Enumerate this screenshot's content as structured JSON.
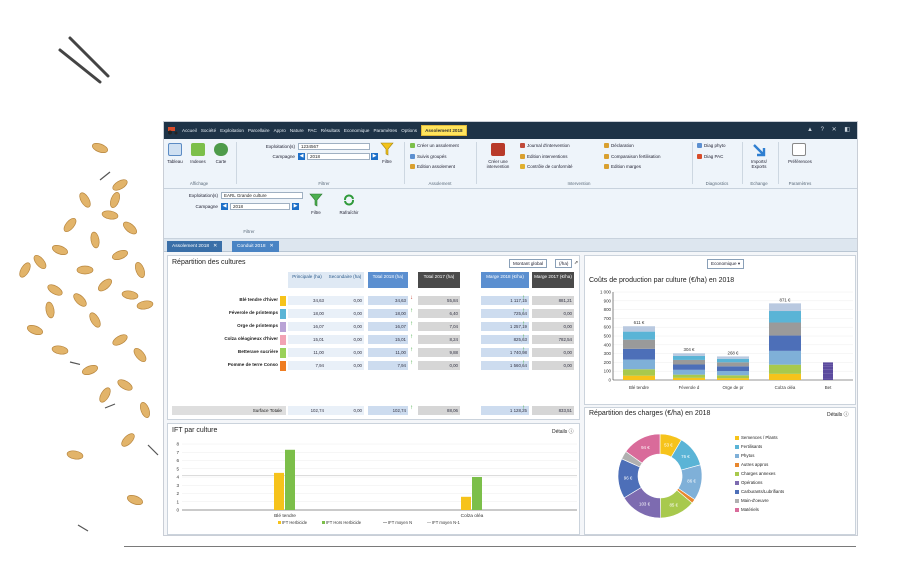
{
  "app": {
    "menu": [
      "Accueil",
      "Société",
      "Exploitation",
      "Parcellaire",
      "Appro",
      "Nature",
      "PAC",
      "Résultats",
      "Economique",
      "Paramètres",
      "Options",
      "Assolement 2018"
    ],
    "ribbon": {
      "tableau": "Tableau",
      "indexes": "Indexes",
      "carte": "Carte",
      "affichage": "Affichage",
      "exploitation_label": "Exploitation(s)",
      "exploitation_value": "1234567",
      "campagne_label": "Campagne",
      "campagne_value": "2018",
      "filtre": "Filtre",
      "filtrer": "Filtrer",
      "creer_assolement": "Créer un assolement",
      "suivis_groupes": "Suivis groupés",
      "edition_assolement": "Edition assolement",
      "assolement": "Assolement",
      "creer_intervention": "Créer une intervention",
      "journal": "Journal d'intervention",
      "edition_interventions": "Edition interventions",
      "controle": "Contrôle de conformité",
      "declaration": "Déclaration",
      "comparaison": "Comparaison fertilisation",
      "edition_marges": "Edition marges",
      "intervention": "Intervention",
      "diag_phyto": "Diag phyto",
      "diag_pac": "Diag PAC",
      "diagnostics": "Diagnostics",
      "imports_exports": "Imports/ Exports",
      "echange": "Echange",
      "preferences": "Préférences",
      "parametres": "Paramètres"
    },
    "filters": {
      "exploitation_label": "Exploitation(s)",
      "exploitation_value": "EARL Grande culture",
      "campagne_label": "Campagne",
      "campagne_value": "2018",
      "filtre": "Filtre",
      "rafraichir": "Rafraîchir",
      "group": "Filtrer"
    },
    "tabs": [
      "Assolement 2018",
      "Conduit 2018"
    ],
    "repartition": {
      "title": "Répartition des cultures",
      "btn_montant": "Montant global",
      "btn_ha": "(/ha)",
      "headers": [
        "Principale (ha)",
        "Secondaire (ha)",
        "Total 2018 (ha)",
        "Total 2017 (ha)",
        "Marge 2018 (€/ha)",
        "Marge 2017 (€/ha)"
      ],
      "rows": [
        {
          "name": "Blé tendre d'hiver",
          "color": "#f6c31b",
          "p": "34,63",
          "s": "0,00",
          "t18": "34,63",
          "t17": "55,84",
          "m18": "1 117,15",
          "m17": "881,21",
          "t_up": false,
          "m_up": true
        },
        {
          "name": "Féverole de printemps",
          "color": "#5ab4d6",
          "p": "18,00",
          "s": "0,00",
          "t18": "18,00",
          "t17": "6,40",
          "m18": "725,64",
          "m17": "0,00",
          "t_up": true,
          "m_up": true
        },
        {
          "name": "Orge de printemps",
          "color": "#b9a3d6",
          "p": "16,07",
          "s": "0,00",
          "t18": "16,07",
          "t17": "7,04",
          "m18": "1 257,19",
          "m17": "0,00",
          "t_up": true,
          "m_up": true
        },
        {
          "name": "Colza oléagineux d'hiver",
          "color": "#f2a3b4",
          "p": "15,01",
          "s": "0,00",
          "t18": "15,01",
          "t17": "8,24",
          "m18": "825,63",
          "m17": "782,54",
          "t_up": true,
          "m_up": true
        },
        {
          "name": "Betterave sucrière",
          "color": "#9ad15a",
          "p": "11,00",
          "s": "0,00",
          "t18": "11,00",
          "t17": "9,88",
          "m18": "1 740,98",
          "m17": "0,00",
          "t_up": true,
          "m_up": true
        },
        {
          "name": "Pomme de terre Conso",
          "color": "#ef7d22",
          "p": "7,94",
          "s": "0,00",
          "t18": "7,94",
          "t17": "0,00",
          "m18": "1 560,64",
          "m17": "0,00",
          "t_up": true,
          "m_up": true
        }
      ],
      "total": {
        "name": "Surface Totale",
        "p": "102,74",
        "s": "0,00",
        "t18": "102,74",
        "t17": "88,06",
        "m18": "1 128,25",
        "m17": "833,51"
      }
    },
    "couts": {
      "dropdown": "Economique",
      "title": "Coûts de production par culture (€/ha) en 2018",
      "y_ticks": [
        "1 000",
        "900",
        "800",
        "700",
        "600",
        "500",
        "400",
        "300",
        "200",
        "100",
        "0"
      ],
      "categories": [
        "Blé tendre",
        "Féverole d",
        "Orge de pr",
        "Colza oléa",
        "Bet"
      ],
      "labels": [
        "611 €",
        "304 €",
        "268 €",
        "871 €"
      ]
    },
    "ift": {
      "title": "IFT par culture",
      "details": "Détails",
      "y_ticks": [
        "8",
        "7",
        "6",
        "5",
        "4",
        "3",
        "2",
        "1",
        "0"
      ],
      "categories": [
        "Blé tendre",
        "Colza oléa"
      ],
      "legend": [
        "IFT Herbicide",
        "IFT Hors Herbicide",
        "IFT moyen N",
        "IFT moyen N-1"
      ]
    },
    "charges": {
      "title": "Répartition des charges (€/ha) en 2018",
      "details": "Détails",
      "legend": [
        "Semences / Plants",
        "Fertilisants",
        "Phytos",
        "Autres appros",
        "Charges annexes",
        "Opérations",
        "Carburants/Lubrifiants",
        "Main-d'oeuvre",
        "Matériels"
      ],
      "slice_labels": [
        "53 €",
        "76 €",
        "86 €",
        "85 €",
        "103 €",
        "96 €",
        "94 €"
      ],
      "colors": [
        "#f6c31b",
        "#5ab4d6",
        "#7fb0d8",
        "#e8872e",
        "#a8c94d",
        "#7d6bb0",
        "#4d6fb8",
        "#b0b0b0",
        "#d96b9a"
      ]
    }
  },
  "chart_data": [
    {
      "type": "bar",
      "title": "Coûts de production par culture (€/ha) en 2018",
      "categories": [
        "Blé tendre",
        "Féverole d",
        "Orge de pr",
        "Colza oléa",
        "Bet"
      ],
      "totals": [
        611,
        304,
        268,
        871,
        200
      ],
      "ylim": [
        0,
        1000
      ],
      "stacked": true
    },
    {
      "type": "bar",
      "title": "IFT par culture",
      "categories": [
        "Blé tendre",
        "Colza oléa"
      ],
      "series": [
        {
          "name": "IFT Herbicide",
          "values": [
            4.5,
            1.6
          ]
        },
        {
          "name": "IFT Hors Herbicide",
          "values": [
            7.3,
            4.0
          ]
        }
      ],
      "ylim": [
        0,
        8
      ]
    },
    {
      "type": "pie",
      "title": "Répartition des charges (€/ha) en 2018",
      "labels": [
        "Semences / Plants",
        "Fertilisants",
        "Phytos",
        "Autres appros",
        "Charges annexes",
        "Opérations",
        "Carburants/Lubrifiants",
        "Main-d'oeuvre",
        "Matériels"
      ],
      "values": [
        53,
        76,
        86,
        10,
        85,
        103,
        96,
        20,
        94
      ]
    }
  ]
}
